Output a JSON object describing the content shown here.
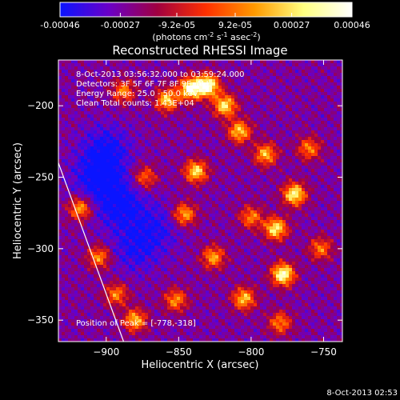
{
  "chart_data": {
    "type": "heatmap",
    "title": "Reconstructed RHESSI Image",
    "xlabel": "Heliocentric X (arcsec)",
    "ylabel": "Heliocentric Y (arcsec)",
    "xlim": [
      -933,
      -737
    ],
    "ylim": [
      -365,
      -168
    ],
    "xticks": [
      -900,
      -850,
      -800,
      -750
    ],
    "yticks": [
      -350,
      -300,
      -250,
      -200
    ],
    "colorbar": {
      "ticks": [
        -0.00046,
        -0.00027,
        -9.2e-05,
        9.2e-05,
        0.00027,
        0.00046
      ],
      "labels": [
        "-0.00046",
        "-0.00027",
        "-9.2e-05",
        "9.2e-05",
        "0.00027",
        "0.00046"
      ],
      "range": [
        -0.00046,
        0.00046
      ],
      "colormap": [
        "#0a14ff",
        "#6a00c8",
        "#a00040",
        "#ff3000",
        "#ff9a00",
        "#ffff80",
        "#ffffff"
      ]
    },
    "units_prefix": "(photons cm",
    "units_exp1": "-2",
    "units_mid": " s",
    "units_exp2": "-1",
    "units_mid2": " asec",
    "units_exp3": "-2",
    "units_suffix": ")",
    "info": {
      "time": "8-Oct-2013 03:56:32.000 to 03:59:24.000",
      "detectors": "Detectors: 3F 5F 6F 7F 8F 9F, ALL ",
      "energy": "Energy Range: 25.0 - 50.0 keV",
      "method": "Clean    Total counts: 1.43E+04",
      "peak": "Position of Peak = [-778,-318]"
    },
    "peak": [
      -778,
      -318
    ],
    "limb_line": [
      [
        -933,
        -240
      ],
      [
        -888,
        -365
      ]
    ],
    "bright_regions": [
      {
        "x": -830,
        "y": -186,
        "level": 0.97
      },
      {
        "x": -842,
        "y": -188,
        "level": 0.9
      },
      {
        "x": -818,
        "y": -200,
        "level": 0.8
      },
      {
        "x": -858,
        "y": -196,
        "level": 0.75
      },
      {
        "x": -888,
        "y": -190,
        "level": 0.6
      },
      {
        "x": -778,
        "y": -318,
        "level": 0.92
      },
      {
        "x": -770,
        "y": -262,
        "level": 0.85
      },
      {
        "x": -783,
        "y": -286,
        "level": 0.82
      },
      {
        "x": -790,
        "y": -234,
        "level": 0.7
      },
      {
        "x": -808,
        "y": -218,
        "level": 0.74
      },
      {
        "x": -838,
        "y": -246,
        "level": 0.78
      },
      {
        "x": -846,
        "y": -276,
        "level": 0.68
      },
      {
        "x": -826,
        "y": -306,
        "level": 0.66
      },
      {
        "x": -805,
        "y": -335,
        "level": 0.72
      },
      {
        "x": -852,
        "y": -336,
        "level": 0.62
      },
      {
        "x": -918,
        "y": -272,
        "level": 0.66
      },
      {
        "x": -905,
        "y": -306,
        "level": 0.62
      },
      {
        "x": -880,
        "y": -350,
        "level": 0.7
      },
      {
        "x": -893,
        "y": -332,
        "level": 0.6
      },
      {
        "x": -760,
        "y": -230,
        "level": 0.6
      },
      {
        "x": -752,
        "y": -300,
        "level": 0.58
      },
      {
        "x": -780,
        "y": -352,
        "level": 0.6
      },
      {
        "x": -873,
        "y": -250,
        "level": 0.55
      },
      {
        "x": -800,
        "y": -278,
        "level": 0.6
      }
    ],
    "dark_regions": [
      {
        "x": -905,
        "y": -250,
        "level": 0.02
      },
      {
        "x": -890,
        "y": -270,
        "level": 0.05
      },
      {
        "x": -880,
        "y": -300,
        "level": 0.12
      },
      {
        "x": -900,
        "y": -230,
        "level": 0.1
      },
      {
        "x": -865,
        "y": -285,
        "level": 0.15
      }
    ]
  },
  "footer": {
    "timestamp": "8-Oct-2013 02:53"
  }
}
